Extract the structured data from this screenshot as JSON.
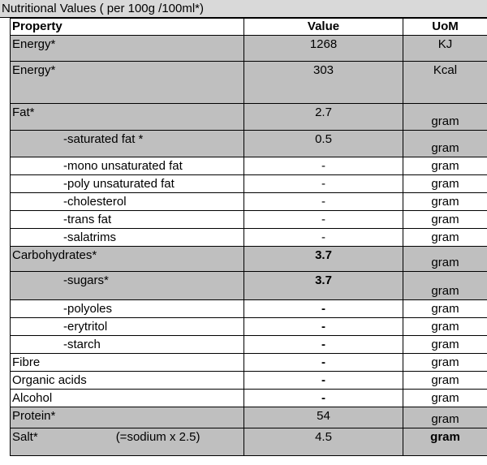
{
  "title": "Nutritional Values ( per 100g /100ml*)",
  "headers": {
    "property": "Property",
    "value": "Value",
    "uom": "UoM"
  },
  "rows": [
    {
      "property": "Energy*",
      "value": "1268",
      "uom": "KJ"
    },
    {
      "property": "Energy*",
      "value": "303",
      "uom": "Kcal"
    },
    {
      "property": "Fat*",
      "value": "2.7",
      "uom": "gram"
    },
    {
      "property": "-saturated fat *",
      "value": "0.5",
      "uom": "gram"
    },
    {
      "property": "-mono unsaturated fat",
      "value": "-",
      "uom": "gram"
    },
    {
      "property": "-poly unsaturated fat",
      "value": "-",
      "uom": "gram"
    },
    {
      "property": "-cholesterol",
      "value": "-",
      "uom": "gram"
    },
    {
      "property": "-trans fat",
      "value": "-",
      "uom": "gram"
    },
    {
      "property": "-salatrims",
      "value": "-",
      "uom": "gram"
    },
    {
      "property": "Carbohydrates*",
      "value": "3.7",
      "uom": "gram"
    },
    {
      "property": "-sugars*",
      "value": "3.7",
      "uom": "gram"
    },
    {
      "property": "-polyoles",
      "value": "-",
      "uom": "gram"
    },
    {
      "property": "-erytritol",
      "value": "-",
      "uom": "gram"
    },
    {
      "property": "-starch",
      "value": "-",
      "uom": "gram"
    },
    {
      "property": "Fibre",
      "value": "-",
      "uom": "gram"
    },
    {
      "property": "Organic acids",
      "value": "-",
      "uom": "gram"
    },
    {
      "property": "Alcohol",
      "value": "-",
      "uom": "gram"
    },
    {
      "property": "Protein*",
      "value": "54",
      "uom": "gram"
    },
    {
      "property": "Salt*",
      "note": "(=sodium x 2.5)",
      "value": "4.5",
      "uom": "gram"
    }
  ]
}
